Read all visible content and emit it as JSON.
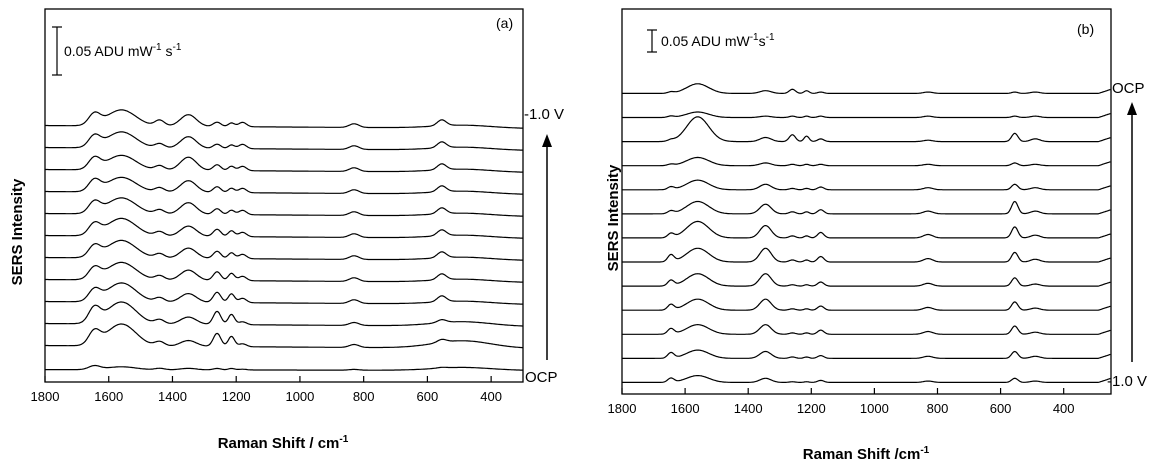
{
  "chart_data": [
    {
      "type": "line",
      "panel_label": "(a)",
      "xlabel": "Raman Shift / cm-1",
      "ylabel": "SERS Intensity",
      "xlim": [
        1800,
        300
      ],
      "xticks": [
        1800,
        1600,
        1400,
        1200,
        1000,
        800,
        600,
        400
      ],
      "scale_bar": {
        "text": "0.05 ADU mW-1 s-1",
        "value": 0.05
      },
      "top_label": "-1.0 V",
      "bottom_label": "OCP",
      "arrow_direction": "up",
      "n_spectra": 12,
      "spectrum_offset": 0.03,
      "features": [
        {
          "x": 1645,
          "width": 18,
          "heights": [
            0.005,
            0.018,
            0.02,
            0.015,
            0.015,
            0.015,
            0.015,
            0.015,
            0.015,
            0.015,
            0.015,
            0.015
          ]
        },
        {
          "x": 1560,
          "width": 45,
          "heights": [
            0.004,
            0.03,
            0.03,
            0.026,
            0.024,
            0.024,
            0.024,
            0.022,
            0.02,
            0.02,
            0.022,
            0.022
          ]
        },
        {
          "x": 1440,
          "width": 15,
          "heights": [
            0.002,
            0.006,
            0.006,
            0.006,
            0.006,
            0.006,
            0.006,
            0.006,
            0.006,
            0.006,
            0.006,
            0.008
          ]
        },
        {
          "x": 1350,
          "width": 25,
          "heights": [
            0.002,
            0.008,
            0.01,
            0.012,
            0.014,
            0.014,
            0.014,
            0.016,
            0.016,
            0.018,
            0.016,
            0.016
          ]
        },
        {
          "x": 1260,
          "width": 12,
          "heights": [
            0.002,
            0.018,
            0.018,
            0.014,
            0.012,
            0.01,
            0.01,
            0.008,
            0.008,
            0.008,
            0.006,
            0.006
          ]
        },
        {
          "x": 1215,
          "width": 10,
          "heights": [
            0.002,
            0.014,
            0.014,
            0.012,
            0.01,
            0.008,
            0.008,
            0.006,
            0.006,
            0.006,
            0.005,
            0.005
          ]
        },
        {
          "x": 1180,
          "width": 12,
          "heights": [
            0.001,
            0.004,
            0.004,
            0.006,
            0.006,
            0.006,
            0.006,
            0.006,
            0.006,
            0.006,
            0.006,
            0.006
          ]
        },
        {
          "x": 830,
          "width": 15,
          "heights": [
            0.001,
            0.004,
            0.004,
            0.005,
            0.005,
            0.005,
            0.005,
            0.005,
            0.005,
            0.005,
            0.005,
            0.005
          ]
        },
        {
          "x": 555,
          "width": 14,
          "heights": [
            0.001,
            0.004,
            0.004,
            0.008,
            0.008,
            0.008,
            0.008,
            0.008,
            0.008,
            0.008,
            0.008,
            0.008
          ]
        },
        {
          "x": 490,
          "width": 90,
          "heights": [
            0.004,
            0.01,
            0.006,
            0.004,
            0.004,
            0.004,
            0.004,
            0.004,
            0.004,
            0.004,
            0.004,
            0.004
          ]
        }
      ]
    },
    {
      "type": "line",
      "panel_label": "(b)",
      "xlabel": "Raman Shift /cm-1",
      "ylabel": "SERS Intensity",
      "xlim": [
        1800,
        250
      ],
      "xticks": [
        1800,
        1600,
        1400,
        1200,
        1000,
        800,
        600,
        400
      ],
      "scale_bar": {
        "text": "0.05 ADU mW-1s-1",
        "value": 0.05
      },
      "top_label": "OCP",
      "bottom_label": "-1.0 V",
      "arrow_direction": "up",
      "n_spectra": 13,
      "spectrum_offset": 0.035,
      "features": [
        {
          "x": 1645,
          "width": 10,
          "heights": [
            0.006,
            0.008,
            0.008,
            0.008,
            0.008,
            0.01,
            0.006,
            0.004,
            0.004,
            0.002,
            0.002,
            0.002,
            0.002
          ]
        },
        {
          "x": 1560,
          "width": 35,
          "heights": [
            0.01,
            0.012,
            0.014,
            0.016,
            0.018,
            0.02,
            0.024,
            0.018,
            0.014,
            0.012,
            0.036,
            0.008,
            0.014
          ]
        },
        {
          "x": 1345,
          "width": 18,
          "heights": [
            0.006,
            0.01,
            0.014,
            0.016,
            0.018,
            0.02,
            0.018,
            0.014,
            0.008,
            0.004,
            0.006,
            0.002,
            0.004
          ]
        },
        {
          "x": 1260,
          "width": 10,
          "heights": [
            0.001,
            0.002,
            0.002,
            0.002,
            0.002,
            0.003,
            0.003,
            0.003,
            0.002,
            0.002,
            0.01,
            0.002,
            0.006
          ]
        },
        {
          "x": 1215,
          "width": 8,
          "heights": [
            0.001,
            0.002,
            0.002,
            0.002,
            0.002,
            0.003,
            0.003,
            0.003,
            0.002,
            0.002,
            0.008,
            0.002,
            0.004
          ]
        },
        {
          "x": 1170,
          "width": 10,
          "heights": [
            0.003,
            0.004,
            0.006,
            0.006,
            0.006,
            0.008,
            0.008,
            0.006,
            0.004,
            0.002,
            0.004,
            0.002,
            0.002
          ]
        },
        {
          "x": 830,
          "width": 15,
          "heights": [
            0.002,
            0.003,
            0.004,
            0.004,
            0.004,
            0.005,
            0.005,
            0.004,
            0.003,
            0.002,
            0.002,
            0.002,
            0.002
          ]
        },
        {
          "x": 555,
          "width": 10,
          "heights": [
            0.006,
            0.01,
            0.012,
            0.012,
            0.012,
            0.014,
            0.016,
            0.018,
            0.008,
            0.004,
            0.012,
            0.002,
            0.002
          ]
        },
        {
          "x": 490,
          "width": 15,
          "heights": [
            0.002,
            0.003,
            0.003,
            0.003,
            0.003,
            0.004,
            0.004,
            0.004,
            0.003,
            0.002,
            0.004,
            0.002,
            0.002
          ]
        }
      ]
    }
  ]
}
